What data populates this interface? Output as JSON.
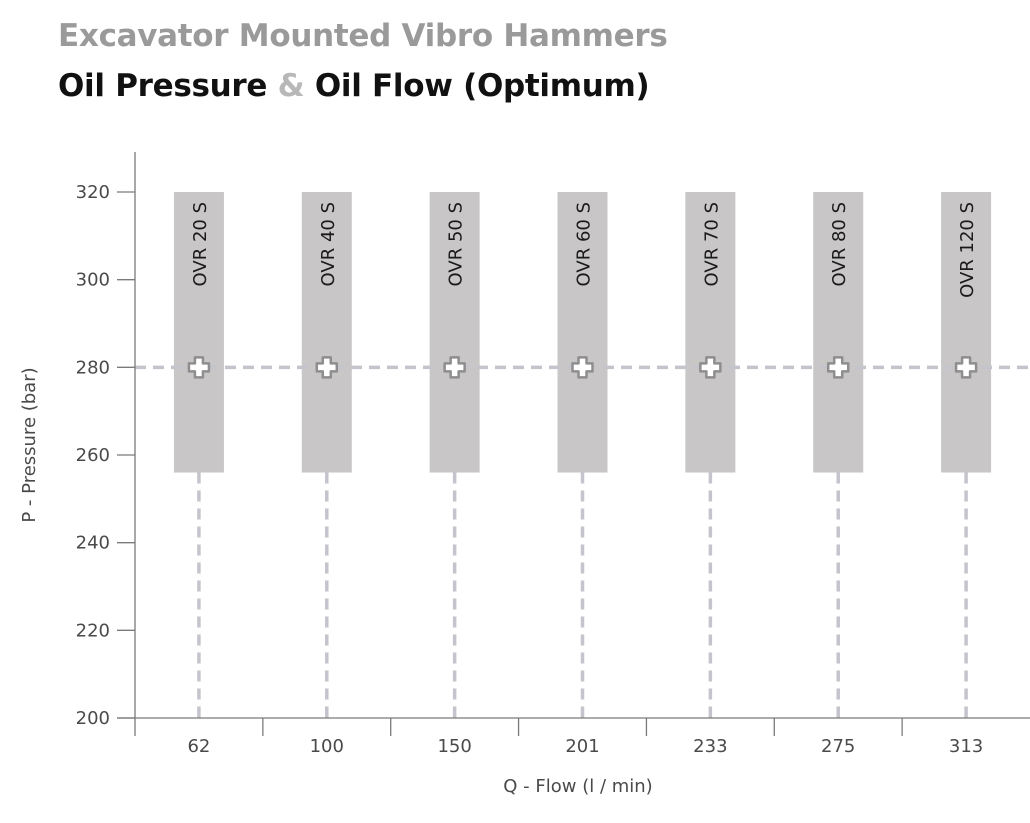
{
  "title": {
    "line1": "Excavator Mounted Vibro Hammers",
    "line2_part1": "Oil Pressure",
    "line2_amp": "&",
    "line2_part2": "Oil Flow (Optimum)"
  },
  "colors": {
    "title_grey": "#9a9a9a",
    "title_dark": "#111111",
    "bar_fill": "#c8c6c6",
    "dash_line": "#c4c4cc",
    "axis": "#7a7a7a",
    "marker": "#ffffff"
  },
  "chart_data": {
    "type": "bar",
    "xlabel": "Q - Flow (l / min)",
    "ylabel": "P - Pressure (bar)",
    "ylim": [
      200,
      320
    ],
    "yticks": [
      200,
      220,
      240,
      260,
      280,
      300,
      320
    ],
    "optimum_pressure": 280,
    "grid": false,
    "categories": [
      "62",
      "100",
      "150",
      "201",
      "233",
      "275",
      "313"
    ],
    "series": [
      {
        "label": "OVR 20 S",
        "flow": 62,
        "pressure_min": 256,
        "pressure_max": 320,
        "optimum": 280
      },
      {
        "label": "OVR 40 S",
        "flow": 100,
        "pressure_min": 256,
        "pressure_max": 320,
        "optimum": 280
      },
      {
        "label": "OVR 50 S",
        "flow": 150,
        "pressure_min": 256,
        "pressure_max": 320,
        "optimum": 280
      },
      {
        "label": "OVR 60 S",
        "flow": 201,
        "pressure_min": 256,
        "pressure_max": 320,
        "optimum": 280
      },
      {
        "label": "OVR 70 S",
        "flow": 233,
        "pressure_min": 256,
        "pressure_max": 320,
        "optimum": 280
      },
      {
        "label": "OVR 80 S",
        "flow": 275,
        "pressure_min": 256,
        "pressure_max": 320,
        "optimum": 280
      },
      {
        "label": "OVR 120 S",
        "flow": 313,
        "pressure_min": 256,
        "pressure_max": 320,
        "optimum": 280
      }
    ]
  }
}
